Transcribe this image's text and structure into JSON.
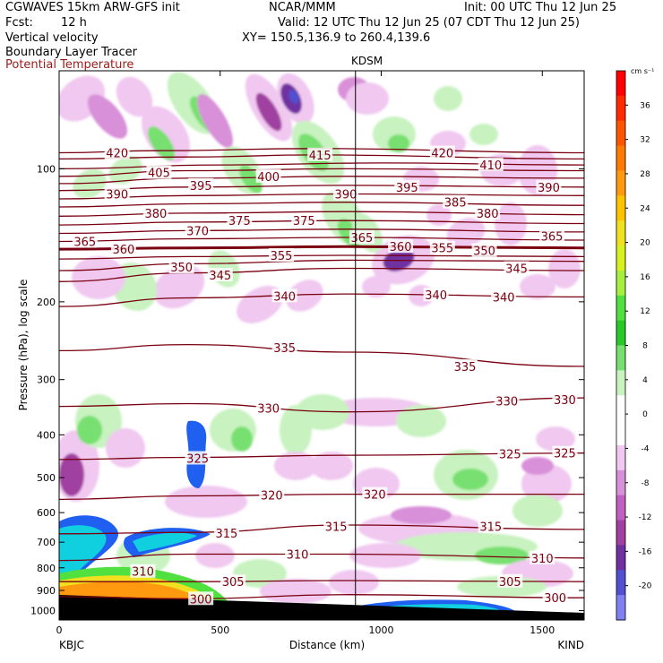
{
  "header": {
    "model": "CGWAVES 15km ARW-GFS init",
    "org": "NCAR/MMM",
    "init": "Init: 00 UTC Thu 12 Jun 25",
    "fcst_label": "Fcst:",
    "fcst_value": "12 h",
    "valid": "Valid: 12 UTC Thu 12 Jun 25 (07 CDT Thu 12 Jun 25)",
    "field1": "Vertical velocity",
    "xy": "XY= 150.5,136.9 to 260.4,139.6",
    "field2": "Boundary Layer Tracer",
    "field3": "Potential Temperature"
  },
  "colors": {
    "theta": "#7a0010",
    "accent_red": "#9b1b1b",
    "up_light": "#c8f2c0",
    "up_mid": "#78e070",
    "up_strong": "#28c828",
    "down_light": "#f0c8f0",
    "down_mid": "#d890d8",
    "down_strong": "#a040a0",
    "down_deep": "#7030a0",
    "down_max": "#5050d0",
    "blt_blue": "#2060f0",
    "blt_cyan": "#10d0e0",
    "blt_green": "#50e040",
    "blt_yellow": "#f0e020",
    "blt_orange": "#ff9a10"
  },
  "chart_data": {
    "type": "cross-section",
    "station_marker": "KDSM",
    "xlabel": "Distance (km)",
    "ylabel": "Pressure (hPa), log scale",
    "left_endpoint": "KBJC",
    "right_endpoint": "KIND",
    "xlim": [
      0,
      1630
    ],
    "ylim": [
      1050,
      60
    ],
    "y_scale": "log",
    "xticks": [
      0,
      500,
      1000,
      1500
    ],
    "yticks": [
      100,
      200,
      300,
      400,
      500,
      600,
      700,
      800,
      900,
      1000
    ],
    "station_x_km": 920,
    "colorbar": {
      "units": "cm s⁻¹",
      "tick_values": [
        36,
        32,
        28,
        24,
        20,
        16,
        12,
        8,
        4,
        0,
        -4,
        -8,
        -12,
        -16,
        -20
      ],
      "colors": [
        "#ff0000",
        "#ff2a00",
        "#ff5500",
        "#ff7a00",
        "#ff9a10",
        "#ffc400",
        "#f0e020",
        "#d8f020",
        "#a8f040",
        "#50e040",
        "#28c828",
        "#78e070",
        "#c8f2c0",
        "#ffffff",
        "#ffffff",
        "#f0c8f0",
        "#d890d8",
        "#c060c0",
        "#a040a0",
        "#7030a0",
        "#5050d0",
        "#8080f0"
      ]
    },
    "theta_contours": [
      {
        "value": 420,
        "points": [
          [
            0,
            92
          ],
          [
            300,
            91
          ],
          [
            800,
            90
          ],
          [
            1630,
            92
          ]
        ]
      },
      {
        "value": 415,
        "points": [
          [
            0,
            95
          ],
          [
            400,
            94
          ],
          [
            800,
            93
          ],
          [
            1630,
            95
          ]
        ]
      },
      {
        "value": 410,
        "points": [
          [
            0,
            100
          ],
          [
            500,
            98
          ],
          [
            1000,
            97
          ],
          [
            1630,
            98
          ]
        ]
      },
      {
        "value": 405,
        "points": [
          [
            0,
            104
          ],
          [
            400,
            101
          ],
          [
            900,
            100
          ],
          [
            1630,
            101
          ]
        ]
      },
      {
        "value": 400,
        "points": [
          [
            0,
            108
          ],
          [
            400,
            105
          ],
          [
            900,
            104
          ],
          [
            1630,
            105
          ]
        ]
      },
      {
        "value": 395,
        "points": [
          [
            0,
            112
          ],
          [
            400,
            110
          ],
          [
            900,
            109
          ],
          [
            1630,
            110
          ]
        ]
      },
      {
        "value": 390,
        "points": [
          [
            0,
            117
          ],
          [
            400,
            115
          ],
          [
            900,
            114
          ],
          [
            1630,
            115
          ]
        ]
      },
      {
        "value": 385,
        "points": [
          [
            0,
            122
          ],
          [
            400,
            120
          ],
          [
            900,
            119
          ],
          [
            1630,
            121
          ]
        ]
      },
      {
        "value": 380,
        "points": [
          [
            0,
            128
          ],
          [
            400,
            126
          ],
          [
            900,
            125
          ],
          [
            1630,
            127
          ]
        ]
      },
      {
        "value": 375,
        "points": [
          [
            0,
            134
          ],
          [
            400,
            132
          ],
          [
            900,
            131
          ],
          [
            1630,
            133
          ]
        ]
      },
      {
        "value": 370,
        "points": [
          [
            0,
            140
          ],
          [
            400,
            138
          ],
          [
            900,
            137
          ],
          [
            1630,
            139
          ]
        ]
      },
      {
        "value": 365,
        "points": [
          [
            0,
            146
          ],
          [
            400,
            144
          ],
          [
            900,
            143
          ],
          [
            1630,
            145
          ]
        ]
      },
      {
        "value": 360,
        "points": [
          [
            0,
            152
          ],
          [
            400,
            151
          ],
          [
            900,
            150
          ],
          [
            1630,
            151
          ]
        ]
      },
      {
        "value": 355,
        "points": [
          [
            0,
            160
          ],
          [
            400,
            158
          ],
          [
            900,
            157
          ],
          [
            1630,
            158
          ]
        ]
      },
      {
        "value": 350,
        "points": [
          [
            0,
            170
          ],
          [
            400,
            164
          ],
          [
            900,
            161
          ],
          [
            1630,
            162
          ]
        ]
      },
      {
        "value": 345,
        "points": [
          [
            0,
            180
          ],
          [
            400,
            172
          ],
          [
            900,
            168
          ],
          [
            1630,
            170
          ]
        ]
      },
      {
        "value": 340,
        "points": [
          [
            0,
            205
          ],
          [
            400,
            196
          ],
          [
            900,
            192
          ],
          [
            1630,
            195
          ]
        ]
      },
      {
        "value": 335,
        "points": [
          [
            0,
            258
          ],
          [
            400,
            250
          ],
          [
            900,
            260
          ],
          [
            1630,
            280
          ]
        ]
      },
      {
        "value": 330,
        "points": [
          [
            0,
            345
          ],
          [
            400,
            340
          ],
          [
            900,
            355
          ],
          [
            1630,
            330
          ]
        ]
      },
      {
        "value": 325,
        "points": [
          [
            0,
            455
          ],
          [
            400,
            450
          ],
          [
            900,
            445
          ],
          [
            1630,
            440
          ]
        ]
      },
      {
        "value": 320,
        "points": [
          [
            0,
            560
          ],
          [
            400,
            550
          ],
          [
            900,
            545
          ],
          [
            1630,
            545
          ]
        ]
      },
      {
        "value": 315,
        "points": [
          [
            0,
            670
          ],
          [
            400,
            665
          ],
          [
            900,
            640
          ],
          [
            1630,
            655
          ]
        ]
      },
      {
        "value": 310,
        "points": [
          [
            0,
            770
          ],
          [
            400,
            745
          ],
          [
            900,
            745
          ],
          [
            1630,
            760
          ]
        ]
      },
      {
        "value": 305,
        "points": [
          [
            0,
            860
          ],
          [
            400,
            860
          ],
          [
            900,
            855
          ],
          [
            1630,
            860
          ]
        ]
      },
      {
        "value": 300,
        "points": [
          [
            0,
            930
          ],
          [
            400,
            940
          ],
          [
            900,
            920
          ],
          [
            1630,
            935
          ]
        ]
      }
    ],
    "contour_labels": [
      {
        "text": "420",
        "x": 180,
        "p": 92
      },
      {
        "text": "420",
        "x": 1190,
        "p": 92
      },
      {
        "text": "415",
        "x": 810,
        "p": 93
      },
      {
        "text": "410",
        "x": 1340,
        "p": 98
      },
      {
        "text": "405",
        "x": 310,
        "p": 102
      },
      {
        "text": "400",
        "x": 650,
        "p": 104
      },
      {
        "text": "395",
        "x": 440,
        "p": 109
      },
      {
        "text": "395",
        "x": 1080,
        "p": 110
      },
      {
        "text": "390",
        "x": 180,
        "p": 114
      },
      {
        "text": "390",
        "x": 890,
        "p": 114
      },
      {
        "text": "390",
        "x": 1520,
        "p": 110
      },
      {
        "text": "385",
        "x": 1230,
        "p": 119
      },
      {
        "text": "380",
        "x": 300,
        "p": 126
      },
      {
        "text": "380",
        "x": 1330,
        "p": 126
      },
      {
        "text": "375",
        "x": 560,
        "p": 131
      },
      {
        "text": "375",
        "x": 760,
        "p": 131
      },
      {
        "text": "370",
        "x": 430,
        "p": 138
      },
      {
        "text": "365",
        "x": 80,
        "p": 146
      },
      {
        "text": "365",
        "x": 940,
        "p": 143
      },
      {
        "text": "365",
        "x": 1530,
        "p": 142
      },
      {
        "text": "360",
        "x": 200,
        "p": 152
      },
      {
        "text": "360",
        "x": 1060,
        "p": 150
      },
      {
        "text": "355",
        "x": 690,
        "p": 157
      },
      {
        "text": "355",
        "x": 1190,
        "p": 151
      },
      {
        "text": "350",
        "x": 1320,
        "p": 153
      },
      {
        "text": "350",
        "x": 380,
        "p": 167
      },
      {
        "text": "345",
        "x": 500,
        "p": 174
      },
      {
        "text": "345",
        "x": 1420,
        "p": 168
      },
      {
        "text": "340",
        "x": 700,
        "p": 194
      },
      {
        "text": "340",
        "x": 1170,
        "p": 193
      },
      {
        "text": "340",
        "x": 1380,
        "p": 195
      },
      {
        "text": "335",
        "x": 700,
        "p": 254
      },
      {
        "text": "335",
        "x": 1260,
        "p": 280
      },
      {
        "text": "330",
        "x": 650,
        "p": 348
      },
      {
        "text": "330",
        "x": 1390,
        "p": 335
      },
      {
        "text": "330",
        "x": 1570,
        "p": 333
      },
      {
        "text": "325",
        "x": 430,
        "p": 452
      },
      {
        "text": "325",
        "x": 1400,
        "p": 442
      },
      {
        "text": "325",
        "x": 1570,
        "p": 440
      },
      {
        "text": "320",
        "x": 660,
        "p": 548
      },
      {
        "text": "320",
        "x": 980,
        "p": 545
      },
      {
        "text": "315",
        "x": 520,
        "p": 667
      },
      {
        "text": "315",
        "x": 860,
        "p": 645
      },
      {
        "text": "315",
        "x": 1340,
        "p": 645
      },
      {
        "text": "310",
        "x": 740,
        "p": 745
      },
      {
        "text": "310",
        "x": 1500,
        "p": 760
      },
      {
        "text": "310",
        "x": 260,
        "p": 815
      },
      {
        "text": "305",
        "x": 540,
        "p": 860
      },
      {
        "text": "305",
        "x": 1400,
        "p": 858
      },
      {
        "text": "300",
        "x": 440,
        "p": 940
      },
      {
        "text": "300",
        "x": 1540,
        "p": 935
      }
    ]
  }
}
